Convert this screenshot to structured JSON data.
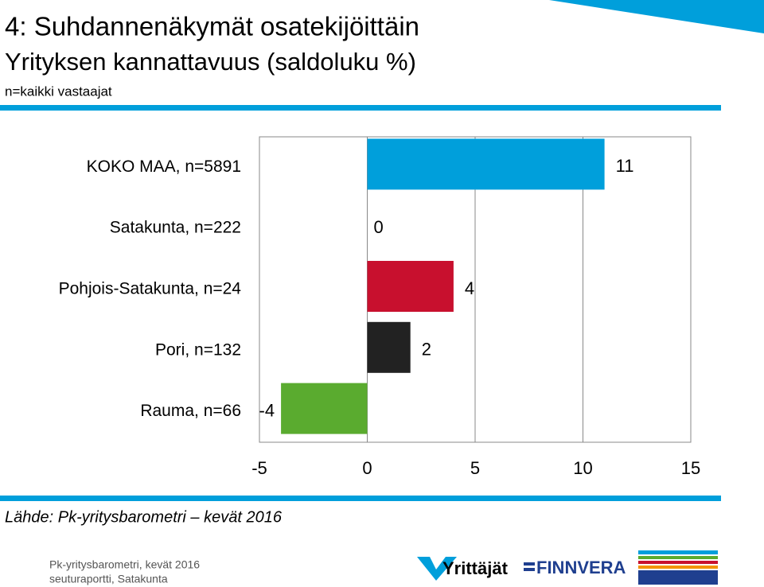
{
  "chart_data": {
    "type": "hbar",
    "title": "4: Suhdannenäkymät osatekijöittäin",
    "subtitle": "Yrityksen kannattavuus (saldoluku %)",
    "note": "n=kaikki vastaajat",
    "categories": [
      "KOKO MAA, n=5891",
      "Satakunta, n=222",
      "Pohjois-Satakunta, n=24",
      "Pori, n=132",
      "Rauma, n=66"
    ],
    "values": [
      11,
      0,
      4,
      2,
      -4
    ],
    "colors": [
      "#009fdb",
      null,
      "#c8102e",
      "#222222",
      "#5aab2f"
    ],
    "xlim": [
      -5,
      15
    ],
    "xticks": [
      -5,
      0,
      5,
      10,
      15
    ],
    "grid": true
  },
  "source": "Lähde: Pk-yritysbarometri – kevät 2016",
  "footer": {
    "lines": [
      "Pk-yritysbarometri, kevät 2016",
      "seuturaportti, Satakunta"
    ],
    "logos": [
      "Yrittäjät",
      "FINNVERA"
    ]
  }
}
